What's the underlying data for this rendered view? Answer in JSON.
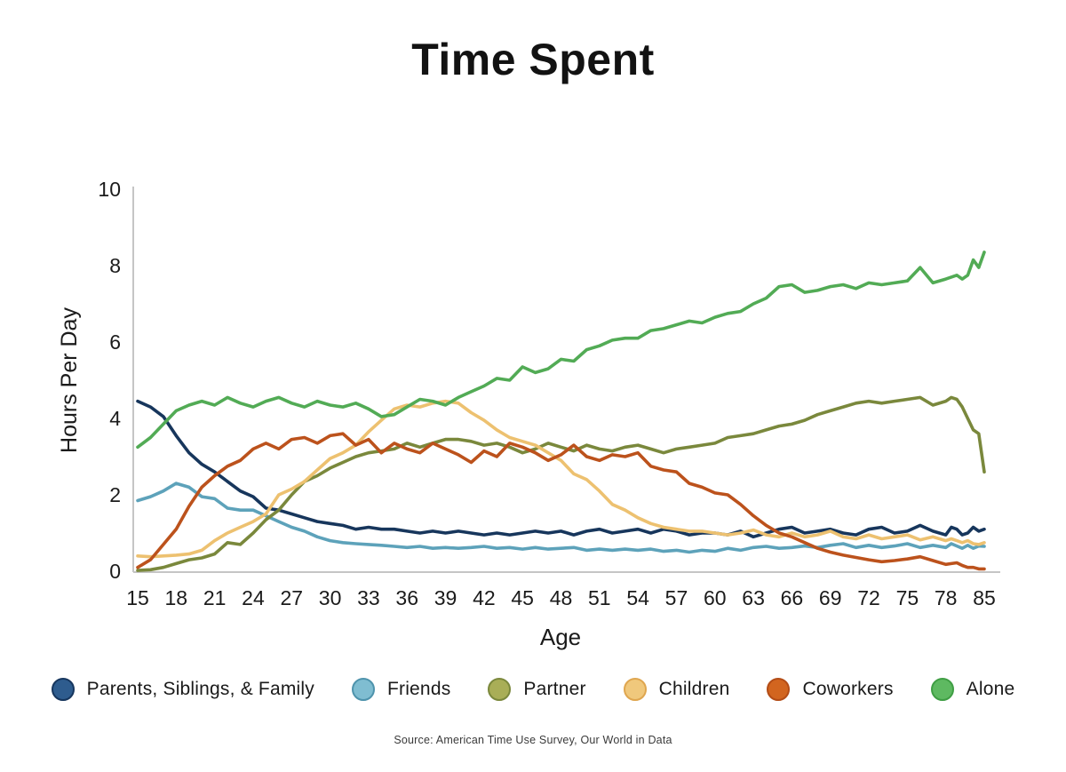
{
  "chart_data": {
    "type": "line",
    "title": "Time Spent",
    "xlabel": "Age",
    "ylabel": "Hours Per Day",
    "ylim": [
      0,
      10
    ],
    "y_ticks": [
      0,
      2,
      4,
      6,
      8,
      10
    ],
    "x_tick_labels": [
      "15",
      "18",
      "21",
      "24",
      "27",
      "30",
      "33",
      "36",
      "39",
      "42",
      "45",
      "48",
      "51",
      "54",
      "57",
      "60",
      "63",
      "66",
      "69",
      "72",
      "75",
      "78",
      "85"
    ],
    "grid": "off",
    "legend_position": "bottom",
    "ages": [
      15,
      16,
      17,
      18,
      19,
      20,
      21,
      22,
      23,
      24,
      25,
      26,
      27,
      28,
      29,
      30,
      31,
      32,
      33,
      34,
      35,
      36,
      37,
      38,
      39,
      40,
      41,
      42,
      43,
      44,
      45,
      46,
      47,
      48,
      49,
      50,
      51,
      52,
      53,
      54,
      55,
      56,
      57,
      58,
      59,
      60,
      61,
      62,
      63,
      64,
      65,
      66,
      67,
      68,
      69,
      70,
      71,
      72,
      73,
      74,
      75,
      76,
      77,
      78,
      79,
      80,
      81,
      82,
      83,
      84,
      85
    ],
    "series": [
      {
        "name": "Parents, Siblings, & Family",
        "color": "#17365c",
        "dot_fill": "#2e5c8e",
        "dot_ring": "#16365e",
        "values": [
          4.45,
          4.3,
          4.05,
          3.55,
          3.1,
          2.8,
          2.6,
          2.35,
          2.1,
          1.95,
          1.65,
          1.6,
          1.5,
          1.4,
          1.3,
          1.25,
          1.2,
          1.1,
          1.15,
          1.1,
          1.1,
          1.05,
          1.0,
          1.05,
          1.0,
          1.05,
          1.0,
          0.95,
          1.0,
          0.95,
          1.0,
          1.05,
          1.0,
          1.05,
          0.95,
          1.05,
          1.1,
          1.0,
          1.05,
          1.1,
          1.0,
          1.1,
          1.05,
          0.95,
          1.0,
          1.0,
          0.95,
          1.05,
          0.9,
          1.0,
          1.1,
          1.15,
          1.0,
          1.05,
          1.1,
          1.0,
          0.95,
          1.1,
          1.15,
          1.0,
          1.05,
          1.2,
          1.05,
          0.95,
          1.15,
          1.1,
          0.95,
          1.0,
          1.15,
          1.05,
          1.1
        ]
      },
      {
        "name": "Friends",
        "color": "#5da2ba",
        "dot_fill": "#7fbdd1",
        "dot_ring": "#4e93ac",
        "values": [
          1.85,
          1.95,
          2.1,
          2.3,
          2.2,
          1.95,
          1.9,
          1.65,
          1.6,
          1.6,
          1.45,
          1.3,
          1.15,
          1.05,
          0.9,
          0.8,
          0.75,
          0.72,
          0.7,
          0.68,
          0.65,
          0.62,
          0.65,
          0.6,
          0.62,
          0.6,
          0.62,
          0.65,
          0.6,
          0.62,
          0.58,
          0.62,
          0.58,
          0.6,
          0.62,
          0.55,
          0.58,
          0.55,
          0.58,
          0.55,
          0.58,
          0.52,
          0.55,
          0.5,
          0.55,
          0.52,
          0.6,
          0.55,
          0.62,
          0.65,
          0.6,
          0.62,
          0.66,
          0.62,
          0.68,
          0.72,
          0.62,
          0.68,
          0.62,
          0.66,
          0.72,
          0.62,
          0.68,
          0.62,
          0.72,
          0.66,
          0.6,
          0.68,
          0.6,
          0.66,
          0.65
        ]
      },
      {
        "name": "Partner",
        "color": "#7a883c",
        "dot_fill": "#a9ae57",
        "dot_ring": "#7b883c",
        "values": [
          0.02,
          0.04,
          0.1,
          0.2,
          0.3,
          0.35,
          0.45,
          0.75,
          0.7,
          1.0,
          1.35,
          1.6,
          2.0,
          2.35,
          2.5,
          2.7,
          2.85,
          3.0,
          3.1,
          3.15,
          3.2,
          3.35,
          3.25,
          3.35,
          3.45,
          3.45,
          3.4,
          3.3,
          3.35,
          3.25,
          3.1,
          3.2,
          3.35,
          3.25,
          3.15,
          3.3,
          3.2,
          3.15,
          3.25,
          3.3,
          3.2,
          3.1,
          3.2,
          3.25,
          3.3,
          3.35,
          3.5,
          3.55,
          3.6,
          3.7,
          3.8,
          3.85,
          3.95,
          4.1,
          4.2,
          4.3,
          4.4,
          4.45,
          4.4,
          4.45,
          4.5,
          4.55,
          4.35,
          4.45,
          4.55,
          4.5,
          4.3,
          4.0,
          3.7,
          3.6,
          2.6
        ]
      },
      {
        "name": "Children",
        "color": "#edc170",
        "dot_fill": "#f0c87c",
        "dot_ring": "#dfa64f",
        "values": [
          0.4,
          0.38,
          0.4,
          0.42,
          0.45,
          0.55,
          0.8,
          1.0,
          1.15,
          1.3,
          1.5,
          2.0,
          2.15,
          2.35,
          2.65,
          2.95,
          3.1,
          3.3,
          3.65,
          3.95,
          4.25,
          4.35,
          4.3,
          4.4,
          4.45,
          4.4,
          4.15,
          3.95,
          3.7,
          3.5,
          3.4,
          3.3,
          3.1,
          2.9,
          2.55,
          2.4,
          2.1,
          1.75,
          1.6,
          1.4,
          1.25,
          1.15,
          1.1,
          1.05,
          1.05,
          1.0,
          0.95,
          1.0,
          1.08,
          0.95,
          0.9,
          1.0,
          0.9,
          0.95,
          1.05,
          0.9,
          0.85,
          0.95,
          0.85,
          0.9,
          0.95,
          0.82,
          0.9,
          0.8,
          0.85,
          0.8,
          0.75,
          0.8,
          0.72,
          0.7,
          0.75
        ]
      },
      {
        "name": "Coworkers",
        "color": "#bc521c",
        "dot_fill": "#d2651f",
        "dot_ring": "#b34c16",
        "values": [
          0.1,
          0.3,
          0.7,
          1.1,
          1.7,
          2.2,
          2.5,
          2.75,
          2.9,
          3.2,
          3.35,
          3.2,
          3.45,
          3.5,
          3.35,
          3.55,
          3.6,
          3.3,
          3.45,
          3.1,
          3.35,
          3.2,
          3.1,
          3.35,
          3.2,
          3.05,
          2.85,
          3.15,
          3.0,
          3.35,
          3.25,
          3.1,
          2.9,
          3.05,
          3.3,
          3.0,
          2.9,
          3.05,
          3.0,
          3.1,
          2.75,
          2.65,
          2.6,
          2.3,
          2.2,
          2.05,
          2.0,
          1.75,
          1.45,
          1.2,
          1.0,
          0.9,
          0.75,
          0.6,
          0.5,
          0.42,
          0.36,
          0.3,
          0.25,
          0.28,
          0.32,
          0.38,
          0.28,
          0.18,
          0.2,
          0.22,
          0.15,
          0.1,
          0.1,
          0.06,
          0.06
        ]
      },
      {
        "name": "Alone",
        "color": "#52ab55",
        "dot_fill": "#5eb961",
        "dot_ring": "#3f9e44",
        "values": [
          3.25,
          3.5,
          3.85,
          4.2,
          4.35,
          4.45,
          4.35,
          4.55,
          4.4,
          4.3,
          4.45,
          4.55,
          4.4,
          4.3,
          4.45,
          4.35,
          4.3,
          4.4,
          4.25,
          4.05,
          4.1,
          4.3,
          4.5,
          4.45,
          4.35,
          4.55,
          4.7,
          4.85,
          5.05,
          5.0,
          5.35,
          5.2,
          5.3,
          5.55,
          5.5,
          5.8,
          5.9,
          6.05,
          6.1,
          6.1,
          6.3,
          6.35,
          6.45,
          6.55,
          6.5,
          6.65,
          6.75,
          6.8,
          7.0,
          7.15,
          7.45,
          7.5,
          7.3,
          7.35,
          7.45,
          7.5,
          7.4,
          7.55,
          7.5,
          7.55,
          7.6,
          7.95,
          7.55,
          7.65,
          7.7,
          7.75,
          7.65,
          7.75,
          8.15,
          7.95,
          8.35
        ]
      }
    ],
    "source": "Source: American Time Use Survey, Our World in Data",
    "axis_color": "#c5c5c5",
    "tick_text_color": "#1b1b1b"
  }
}
